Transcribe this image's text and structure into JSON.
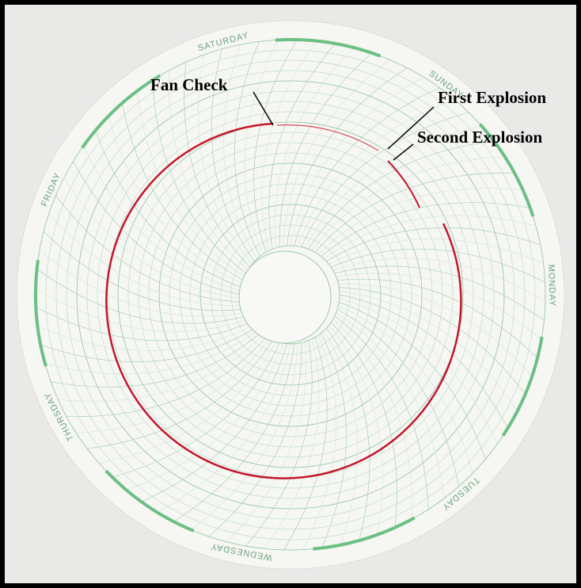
{
  "annotations": [
    "Fan Check",
    "First Explosion",
    "Second Explosion"
  ],
  "days": [
    "MONDAY",
    "TUESDAY",
    "WEDNESDAY",
    "THURSDAY",
    "FRIDAY",
    "SATURDAY",
    "SUNDAY"
  ]
}
